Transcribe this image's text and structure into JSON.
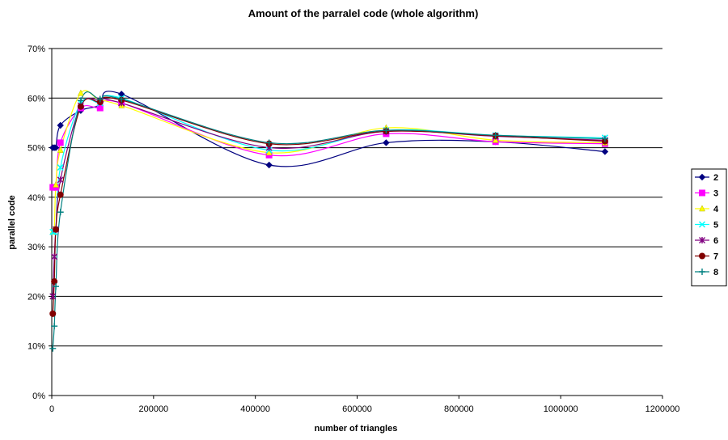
{
  "chart_data": {
    "type": "scatter",
    "title": "Amount of the parralel code (whole algorithm)",
    "xlabel": "number of triangles",
    "ylabel": "parallel code",
    "xlim": [
      0,
      1200000
    ],
    "ylim": [
      0,
      70
    ],
    "xticks": [
      "0",
      "200000",
      "400000",
      "600000",
      "800000",
      "1000000",
      "1200000"
    ],
    "yticks": [
      "0%",
      "10%",
      "20%",
      "30%",
      "40%",
      "50%",
      "60%",
      "70%"
    ],
    "grid": "horizontal",
    "legend_position": "right",
    "x": [
      2000,
      5000,
      8000,
      17000,
      57000,
      95000,
      137000,
      427000,
      657000,
      872000,
      1087000
    ],
    "series": [
      {
        "name": "2",
        "color": "#000080",
        "marker": "diamond",
        "values": [
          50.0,
          50.0,
          50.0,
          54.5,
          57.5,
          58.5,
          60.8,
          46.5,
          51.0,
          51.2,
          49.2
        ]
      },
      {
        "name": "3",
        "color": "#ff00ff",
        "marker": "square",
        "values": [
          42.0,
          42.0,
          42.0,
          51.0,
          58.0,
          58.0,
          59.0,
          48.5,
          52.8,
          51.2,
          50.8
        ]
      },
      {
        "name": "4",
        "color": "#ffff00",
        "marker": "triangle",
        "values": [
          33.0,
          33.5,
          42.5,
          49.5,
          61.0,
          59.5,
          58.5,
          49.0,
          54.0,
          51.5,
          51.0
        ]
      },
      {
        "name": "5",
        "color": "#00ffff",
        "marker": "x",
        "values": [
          33.0,
          33.0,
          33.5,
          46.0,
          59.0,
          59.0,
          60.0,
          49.5,
          53.5,
          52.5,
          52.0
        ]
      },
      {
        "name": "6",
        "color": "#800080",
        "marker": "asterisk",
        "values": [
          20.0,
          28.0,
          33.5,
          43.5,
          58.5,
          59.5,
          59.0,
          50.0,
          53.3,
          52.3,
          51.5
        ]
      },
      {
        "name": "7",
        "color": "#800000",
        "marker": "circle",
        "values": [
          16.5,
          23.0,
          33.5,
          40.5,
          58.3,
          59.2,
          59.6,
          50.8,
          53.3,
          52.4,
          51.3
        ]
      },
      {
        "name": "8",
        "color": "#008080",
        "marker": "plus",
        "values": [
          9.5,
          14.0,
          22.0,
          37.0,
          59.5,
          59.8,
          59.8,
          51.0,
          53.5,
          52.5,
          51.8
        ]
      }
    ]
  }
}
